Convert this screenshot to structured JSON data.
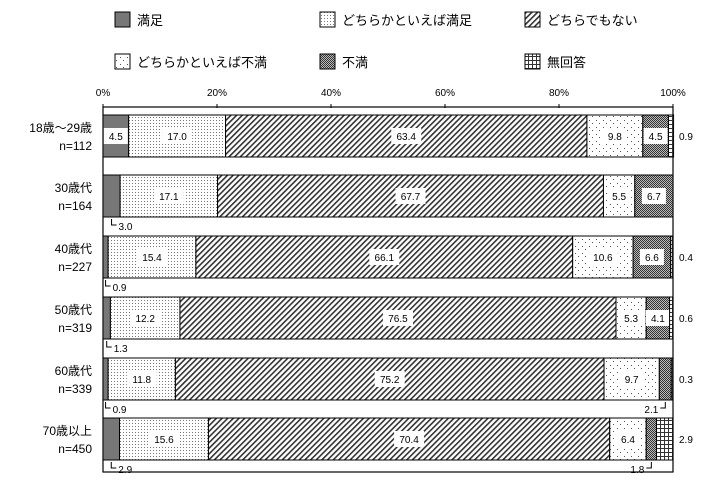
{
  "chart_data": {
    "type": "bar",
    "orientation": "horizontal-stacked-100",
    "legend": [
      "満足",
      "どちらかといえば満足",
      "どちらでもない",
      "どちらかといえば不満",
      "不満",
      "無回答"
    ],
    "legend_position": "top",
    "x_ticks": [
      "0%",
      "20%",
      "40%",
      "60%",
      "80%",
      "100%"
    ],
    "xlim": [
      0,
      100
    ],
    "categories": [
      [
        "18歳～29歳",
        "n=112"
      ],
      [
        "30歳代",
        "n=164"
      ],
      [
        "40歳代",
        "n=227"
      ],
      [
        "50歳代",
        "n=319"
      ],
      [
        "60歳代",
        "n=339"
      ],
      [
        "70歳以上",
        "n=450"
      ]
    ],
    "series": [
      {
        "name": "満足",
        "values": [
          4.5,
          3.0,
          0.9,
          1.3,
          0.9,
          2.9
        ]
      },
      {
        "name": "どちらかといえば満足",
        "values": [
          17.0,
          17.1,
          15.4,
          12.2,
          11.8,
          15.6
        ]
      },
      {
        "name": "どちらでもない",
        "values": [
          63.4,
          67.7,
          66.1,
          76.5,
          75.2,
          70.4
        ]
      },
      {
        "name": "どちらかといえば不満",
        "values": [
          9.8,
          5.5,
          10.6,
          5.3,
          9.7,
          6.4
        ]
      },
      {
        "name": "不満",
        "values": [
          4.5,
          6.7,
          6.6,
          4.1,
          2.1,
          1.8
        ]
      },
      {
        "name": "無回答",
        "values": [
          0.9,
          null,
          0.4,
          0.6,
          0.3,
          2.9
        ]
      }
    ],
    "grid": false
  }
}
